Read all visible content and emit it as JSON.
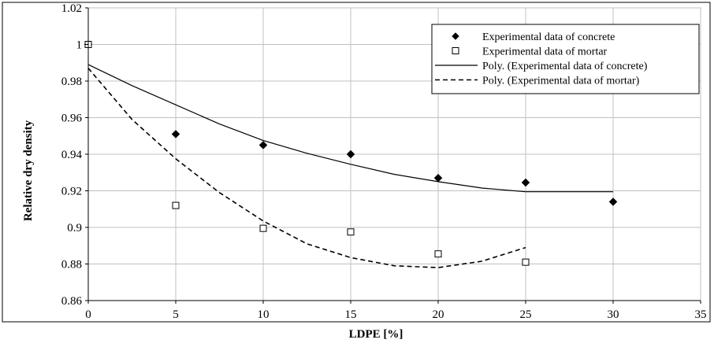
{
  "chart_data": {
    "type": "scatter",
    "title": "",
    "xlabel": "LDPE [%]",
    "ylabel": "Relative dry density",
    "xlim": [
      0,
      35
    ],
    "ylim": [
      0.86,
      1.02
    ],
    "x_ticks": [
      0,
      5,
      10,
      15,
      20,
      25,
      30,
      35
    ],
    "y_ticks": [
      0.86,
      0.88,
      0.9,
      0.92,
      0.94,
      0.96,
      0.98,
      1,
      1.02
    ],
    "x_tick_labels": [
      "0",
      "5",
      "10",
      "15",
      "20",
      "25",
      "30",
      "35"
    ],
    "y_tick_labels": [
      "0.86",
      "0.88",
      "0.9",
      "0.92",
      "0.94",
      "0.96",
      "0.98",
      "1",
      "1.02"
    ],
    "grid": true,
    "legend_position": "top-right",
    "series": [
      {
        "name": "Experimental data of concrete",
        "marker": "diamond",
        "color": "#000000",
        "x": [
          0,
          5,
          10,
          15,
          20,
          25,
          30
        ],
        "y": [
          1.0,
          0.951,
          0.945,
          0.94,
          0.927,
          0.9245,
          0.914
        ]
      },
      {
        "name": "Experimental data of mortar",
        "marker": "open-square",
        "color": "#000000",
        "x": [
          0,
          5,
          10,
          15,
          20,
          25
        ],
        "y": [
          1.0,
          0.912,
          0.8995,
          0.8975,
          0.8855,
          0.881
        ]
      }
    ],
    "trendlines": [
      {
        "name": "Poly. (Experimental data of concrete)",
        "style": "solid",
        "color": "#000000",
        "x": [
          0,
          2.5,
          5,
          7.5,
          10,
          12.5,
          15,
          17.5,
          20,
          22.5,
          25,
          27.5,
          30
        ],
        "y": [
          0.989,
          0.9775,
          0.967,
          0.9565,
          0.9475,
          0.9405,
          0.9345,
          0.929,
          0.925,
          0.9215,
          0.9195,
          0.9195,
          0.9195
        ]
      },
      {
        "name": "Poly. (Experimental data of mortar)",
        "style": "dashed",
        "color": "#000000",
        "x": [
          0,
          2.5,
          5,
          7.5,
          10,
          12.5,
          15,
          17.5,
          20,
          22.5,
          25
        ],
        "y": [
          0.987,
          0.959,
          0.9375,
          0.919,
          0.9035,
          0.891,
          0.8835,
          0.879,
          0.878,
          0.8815,
          0.889
        ]
      }
    ]
  }
}
